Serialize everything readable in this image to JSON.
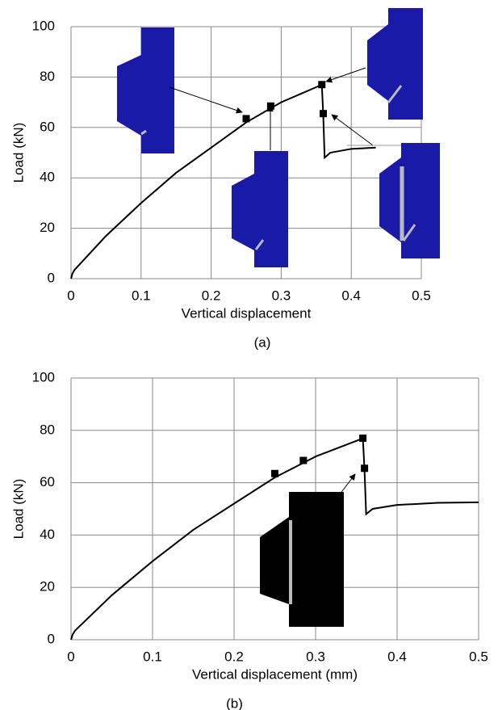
{
  "chart_data": [
    {
      "type": "line",
      "x_label": "Vertical displacement",
      "y_label": "Load (kN)",
      "caption": "(a)",
      "xlim": [
        0,
        0.5
      ],
      "xticks": [
        0,
        0.1,
        0.2,
        0.3,
        0.4,
        0.5
      ],
      "ylim": [
        0,
        100
      ],
      "yticks": [
        0,
        20,
        40,
        60,
        80,
        100
      ],
      "grid": true,
      "series": [
        {
          "color": "#000000",
          "marker": "none",
          "x": [
            0,
            0.002,
            0.005,
            0.01,
            0.05,
            0.1,
            0.15,
            0.2,
            0.25,
            0.3,
            0.35,
            0.358,
            0.36,
            0.362,
            0.37,
            0.4,
            0.435
          ],
          "values": [
            0,
            2,
            3.5,
            5,
            17,
            30,
            42,
            52,
            62,
            70,
            76,
            77,
            65,
            48,
            50,
            51.5,
            52
          ]
        },
        {
          "color": "#000000",
          "marker": "square",
          "x": [
            0.25,
            0.285,
            0.358,
            0.36
          ],
          "values": [
            63.5,
            68.5,
            77,
            65.5
          ]
        }
      ]
    },
    {
      "type": "line",
      "x_label": "Vertical displacement (mm)",
      "y_label": "Load (kN)",
      "caption": "(b)",
      "xlim": [
        0,
        0.5
      ],
      "xticks": [
        0,
        0.1,
        0.2,
        0.3,
        0.4,
        0.5
      ],
      "ylim": [
        0,
        100
      ],
      "yticks": [
        0,
        20,
        40,
        60,
        80,
        100
      ],
      "grid": true,
      "series": [
        {
          "color": "#000000",
          "marker": "none",
          "x": [
            0,
            0.002,
            0.005,
            0.01,
            0.05,
            0.1,
            0.15,
            0.2,
            0.25,
            0.3,
            0.35,
            0.358,
            0.36,
            0.362,
            0.37,
            0.4,
            0.45,
            0.5
          ],
          "values": [
            0,
            2,
            3.5,
            5,
            17,
            30,
            42,
            52,
            62,
            70,
            76,
            77,
            65,
            48,
            50,
            51.5,
            52.3,
            52.5
          ]
        },
        {
          "color": "#000000",
          "marker": "square",
          "x": [
            0.25,
            0.285,
            0.358,
            0.36
          ],
          "values": [
            63.5,
            68.5,
            77,
            65.5
          ]
        }
      ]
    }
  ]
}
